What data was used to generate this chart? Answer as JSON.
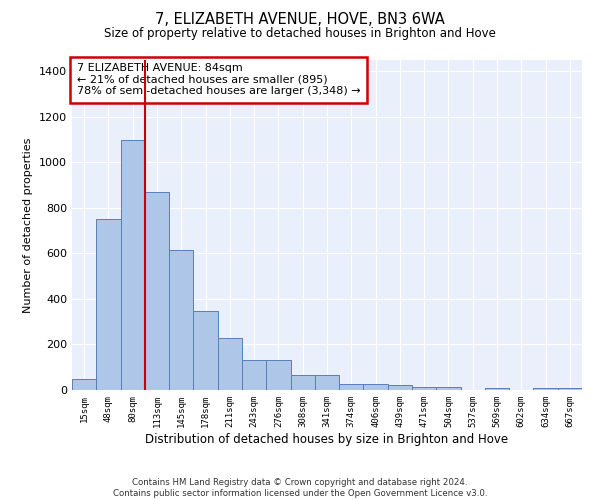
{
  "title": "7, ELIZABETH AVENUE, HOVE, BN3 6WA",
  "subtitle": "Size of property relative to detached houses in Brighton and Hove",
  "xlabel": "Distribution of detached houses by size in Brighton and Hove",
  "ylabel": "Number of detached properties",
  "categories": [
    "15sqm",
    "48sqm",
    "80sqm",
    "113sqm",
    "145sqm",
    "178sqm",
    "211sqm",
    "243sqm",
    "276sqm",
    "308sqm",
    "341sqm",
    "374sqm",
    "406sqm",
    "439sqm",
    "471sqm",
    "504sqm",
    "537sqm",
    "569sqm",
    "602sqm",
    "634sqm",
    "667sqm"
  ],
  "values": [
    50,
    750,
    1100,
    870,
    615,
    345,
    230,
    130,
    130,
    65,
    65,
    25,
    25,
    20,
    15,
    15,
    0,
    10,
    0,
    10,
    10
  ],
  "bar_color": "#aec6e8",
  "bar_edge_color": "#5580b8",
  "vline_color": "#cc0000",
  "vline_x_index": 2.5,
  "annotation_text": "7 ELIZABETH AVENUE: 84sqm\n← 21% of detached houses are smaller (895)\n78% of semi-detached houses are larger (3,348) →",
  "annotation_box_color": "white",
  "annotation_box_edge_color": "#cc0000",
  "ylim": [
    0,
    1450
  ],
  "yticks": [
    0,
    200,
    400,
    600,
    800,
    1000,
    1200,
    1400
  ],
  "bg_color": "#eaf0fb",
  "grid_color": "white",
  "footnote1": "Contains HM Land Registry data © Crown copyright and database right 2024.",
  "footnote2": "Contains public sector information licensed under the Open Government Licence v3.0."
}
